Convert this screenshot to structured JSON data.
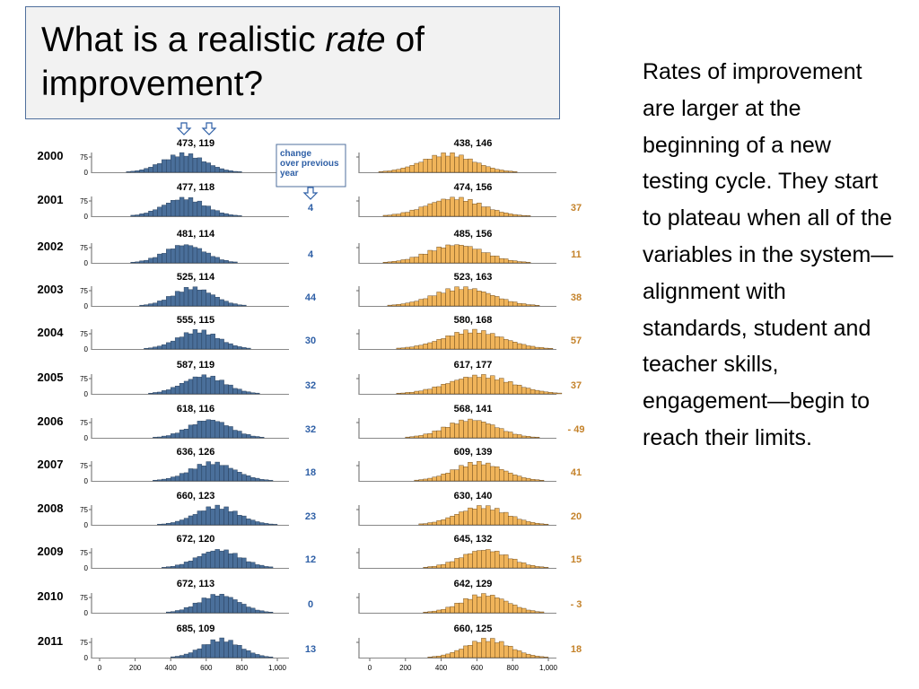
{
  "title": {
    "part1": "What is a realistic ",
    "italic": "rate",
    "part2": " of improvement?"
  },
  "side_text": "Rates of improvement are larger at the beginning of a new testing cycle.  They start to plateau when all of the variables in the system—alignment with standards, student and teacher skills, engagement—begin to reach their limits.",
  "legend_note": [
    "change",
    "over previous",
    "year"
  ],
  "colors": {
    "left_bars": "#4a6f9a",
    "right_bars": "#f0b45a",
    "change_left": "#2e5fa6",
    "change_right": "#c4822a"
  },
  "chart_data": {
    "type": "bar",
    "years": [
      "2000",
      "2001",
      "2002",
      "2003",
      "2004",
      "2005",
      "2006",
      "2007",
      "2008",
      "2009",
      "2010",
      "2011"
    ],
    "x_ticks": [
      "0",
      "200",
      "400",
      "600",
      "800",
      "1,000"
    ],
    "y_ticks": [
      "0",
      "75"
    ],
    "left": {
      "stats": [
        "473,  119",
        "477,  118",
        "481,  114",
        "525,  114",
        "555,  115",
        "587,  119",
        "618,  116",
        "636,  126",
        "660,  123",
        "672,  120",
        "672,  113",
        "685,  109"
      ],
      "mean": [
        473,
        477,
        481,
        525,
        555,
        587,
        618,
        636,
        660,
        672,
        672,
        685
      ],
      "sd": [
        119,
        118,
        114,
        114,
        115,
        119,
        116,
        126,
        123,
        120,
        113,
        109
      ],
      "change": [
        "",
        "4",
        "4",
        "44",
        "30",
        "32",
        "32",
        "18",
        "23",
        "12",
        "0",
        "13"
      ]
    },
    "right": {
      "stats": [
        "438,  146",
        "474,  156",
        "485,  156",
        "523,  163",
        "580,  168",
        "617,  177",
        "568,  141",
        "609,  139",
        "630,  140",
        "645,  132",
        "642,  129",
        "660,  125"
      ],
      "mean": [
        438,
        474,
        485,
        523,
        580,
        617,
        568,
        609,
        630,
        645,
        642,
        660
      ],
      "sd": [
        146,
        156,
        156,
        163,
        168,
        177,
        141,
        139,
        140,
        132,
        129,
        125
      ],
      "change": [
        "",
        "37",
        "11",
        "38",
        "57",
        "37",
        "- 49",
        "41",
        "20",
        "15",
        "- 3",
        "18"
      ]
    }
  }
}
